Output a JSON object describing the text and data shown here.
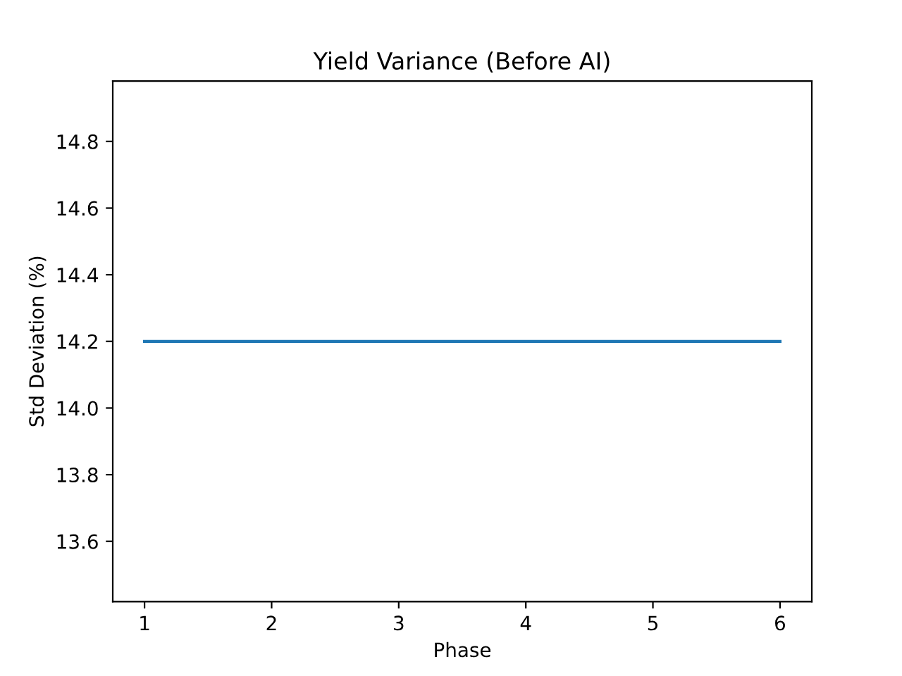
{
  "chart_data": {
    "type": "line",
    "title": "Yield Variance (Before AI)",
    "xlabel": "Phase",
    "ylabel": "Std Deviation (%)",
    "categories": [
      "1",
      "2",
      "3",
      "4",
      "5",
      "6"
    ],
    "series": [
      {
        "color": "#1f77b4",
        "values": [
          14.2,
          14.2,
          14.2,
          14.2,
          14.2,
          14.2
        ]
      }
    ],
    "ylim": [
      13.419,
      14.981
    ],
    "yticks": [
      {
        "value": 13.6,
        "label": "13.6"
      },
      {
        "value": 13.8,
        "label": "13.8"
      },
      {
        "value": 14.0,
        "label": "14.0"
      },
      {
        "value": 14.2,
        "label": "14.2"
      },
      {
        "value": 14.4,
        "label": "14.4"
      },
      {
        "value": 14.6,
        "label": "14.6"
      },
      {
        "value": 14.8,
        "label": "14.8"
      }
    ],
    "grid": false,
    "legend": false,
    "marker": "none",
    "line_style": "solid"
  }
}
